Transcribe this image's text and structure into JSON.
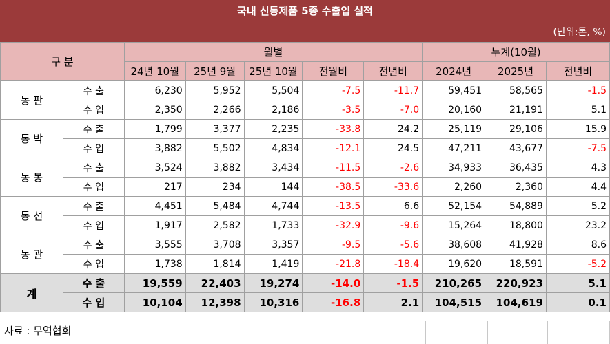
{
  "title": "국내 신동제품 5종 수출입 실적",
  "unit": "(단위:톤, %)",
  "header": {
    "category": "구 분",
    "monthly": "월별",
    "cumulative": "누계(10월)",
    "columns": [
      "24년 10월",
      "25년 9월",
      "25년 10월",
      "전월비",
      "전년비",
      "2024년",
      "2025년",
      "전년비"
    ]
  },
  "groups": [
    {
      "name": "동 판",
      "rows": [
        {
          "label": "수 출",
          "values": [
            "6,230",
            "5,952",
            "5,504",
            "-7.5",
            "-11.7",
            "59,451",
            "58,565",
            "-1.5"
          ]
        },
        {
          "label": "수 입",
          "values": [
            "2,350",
            "2,266",
            "2,186",
            "-3.5",
            "-7.0",
            "20,160",
            "21,191",
            "5.1"
          ]
        }
      ]
    },
    {
      "name": "동 박",
      "rows": [
        {
          "label": "수 출",
          "values": [
            "1,799",
            "3,377",
            "2,235",
            "-33.8",
            "24.2",
            "25,119",
            "29,106",
            "15.9"
          ]
        },
        {
          "label": "수 입",
          "values": [
            "3,882",
            "5,502",
            "4,834",
            "-12.1",
            "24.5",
            "47,211",
            "43,677",
            "-7.5"
          ]
        }
      ]
    },
    {
      "name": "동 봉",
      "rows": [
        {
          "label": "수 출",
          "values": [
            "3,524",
            "3,882",
            "3,434",
            "-11.5",
            "-2.6",
            "34,933",
            "36,435",
            "4.3"
          ]
        },
        {
          "label": "수 입",
          "values": [
            "217",
            "234",
            "144",
            "-38.5",
            "-33.6",
            "2,260",
            "2,360",
            "4.4"
          ]
        }
      ]
    },
    {
      "name": "동 선",
      "rows": [
        {
          "label": "수 출",
          "values": [
            "4,451",
            "5,484",
            "4,744",
            "-13.5",
            "6.6",
            "52,154",
            "54,889",
            "5.2"
          ]
        },
        {
          "label": "수 입",
          "values": [
            "1,917",
            "2,582",
            "1,733",
            "-32.9",
            "-9.6",
            "15,264",
            "18,800",
            "23.2"
          ]
        }
      ]
    },
    {
      "name": "동 관",
      "rows": [
        {
          "label": "수 출",
          "values": [
            "3,555",
            "3,708",
            "3,357",
            "-9.5",
            "-5.6",
            "38,608",
            "41,928",
            "8.6"
          ]
        },
        {
          "label": "수 입",
          "values": [
            "1,738",
            "1,814",
            "1,419",
            "-21.8",
            "-18.4",
            "19,620",
            "18,591",
            "-5.2"
          ]
        }
      ]
    }
  ],
  "total": {
    "name": "계",
    "rows": [
      {
        "label": "수 출",
        "values": [
          "19,559",
          "22,403",
          "19,274",
          "-14.0",
          "-1.5",
          "210,265",
          "220,923",
          "5.1"
        ]
      },
      {
        "label": "수 입",
        "values": [
          "10,104",
          "12,398",
          "10,316",
          "-16.8",
          "2.1",
          "104,515",
          "104,619",
          "0.1"
        ]
      }
    ]
  },
  "source": "자료 : 무역협회",
  "colors": {
    "header_bar": "#9b3a3a",
    "header_cells": "#e8b7b7",
    "negative": "#ff0000",
    "total_row": "#dedede"
  }
}
